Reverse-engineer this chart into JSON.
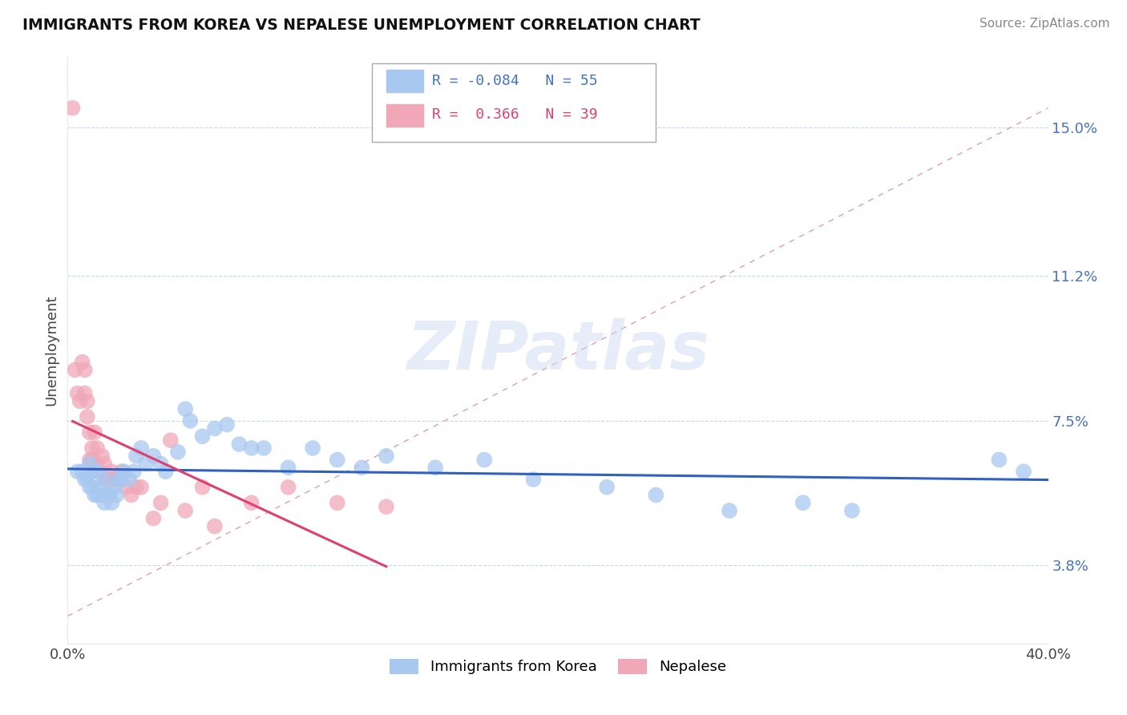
{
  "title": "IMMIGRANTS FROM KOREA VS NEPALESE UNEMPLOYMENT CORRELATION CHART",
  "source_text": "Source: ZipAtlas.com",
  "ylabel": "Unemployment",
  "xlim": [
    0.0,
    0.4
  ],
  "ylim": [
    0.018,
    0.168
  ],
  "ytick_positions": [
    0.038,
    0.075,
    0.112,
    0.15
  ],
  "ytick_labels": [
    "3.8%",
    "7.5%",
    "11.2%",
    "15.0%"
  ],
  "legend_bottom_labels": [
    "Immigrants from Korea",
    "Nepalese"
  ],
  "watermark": "ZIPatlas",
  "korea_color": "#a8c8f0",
  "nepal_color": "#f0a8b8",
  "korea_line_color": "#3060c0",
  "nepal_line_color": "#e04070",
  "korea_r": -0.084,
  "korea_n": 55,
  "nepal_r": 0.366,
  "nepal_n": 39,
  "korea_scatter_x": [
    0.004,
    0.006,
    0.007,
    0.008,
    0.009,
    0.009,
    0.01,
    0.01,
    0.011,
    0.012,
    0.012,
    0.013,
    0.014,
    0.015,
    0.015,
    0.016,
    0.017,
    0.018,
    0.019,
    0.02,
    0.021,
    0.022,
    0.023,
    0.025,
    0.027,
    0.028,
    0.03,
    0.032,
    0.035,
    0.038,
    0.04,
    0.045,
    0.048,
    0.05,
    0.055,
    0.06,
    0.065,
    0.07,
    0.075,
    0.08,
    0.09,
    0.1,
    0.11,
    0.12,
    0.13,
    0.15,
    0.17,
    0.19,
    0.22,
    0.24,
    0.27,
    0.3,
    0.32,
    0.38,
    0.39
  ],
  "korea_scatter_y": [
    0.062,
    0.062,
    0.06,
    0.06,
    0.058,
    0.064,
    0.062,
    0.058,
    0.056,
    0.062,
    0.056,
    0.058,
    0.056,
    0.054,
    0.06,
    0.056,
    0.056,
    0.054,
    0.058,
    0.056,
    0.06,
    0.06,
    0.062,
    0.06,
    0.062,
    0.066,
    0.068,
    0.064,
    0.066,
    0.064,
    0.062,
    0.067,
    0.078,
    0.075,
    0.071,
    0.073,
    0.074,
    0.069,
    0.068,
    0.068,
    0.063,
    0.068,
    0.065,
    0.063,
    0.066,
    0.063,
    0.065,
    0.06,
    0.058,
    0.056,
    0.052,
    0.054,
    0.052,
    0.065,
    0.062
  ],
  "nepal_scatter_x": [
    0.002,
    0.003,
    0.004,
    0.005,
    0.006,
    0.007,
    0.007,
    0.008,
    0.008,
    0.009,
    0.009,
    0.01,
    0.01,
    0.011,
    0.012,
    0.012,
    0.013,
    0.014,
    0.015,
    0.016,
    0.017,
    0.018,
    0.019,
    0.02,
    0.022,
    0.024,
    0.026,
    0.028,
    0.03,
    0.035,
    0.038,
    0.042,
    0.048,
    0.055,
    0.06,
    0.075,
    0.09,
    0.11,
    0.13
  ],
  "nepal_scatter_y": [
    0.155,
    0.088,
    0.082,
    0.08,
    0.09,
    0.082,
    0.088,
    0.076,
    0.08,
    0.065,
    0.072,
    0.065,
    0.068,
    0.072,
    0.064,
    0.068,
    0.062,
    0.066,
    0.064,
    0.06,
    0.06,
    0.062,
    0.06,
    0.06,
    0.062,
    0.058,
    0.056,
    0.058,
    0.058,
    0.05,
    0.054,
    0.07,
    0.052,
    0.058,
    0.048,
    0.054,
    0.058,
    0.054,
    0.053
  ],
  "nepal_line_x_start": 0.002,
  "nepal_line_x_end": 0.13,
  "ref_line_start_x": 0.0,
  "ref_line_start_y": 0.025,
  "ref_line_end_x": 0.4,
  "ref_line_end_y": 0.155
}
